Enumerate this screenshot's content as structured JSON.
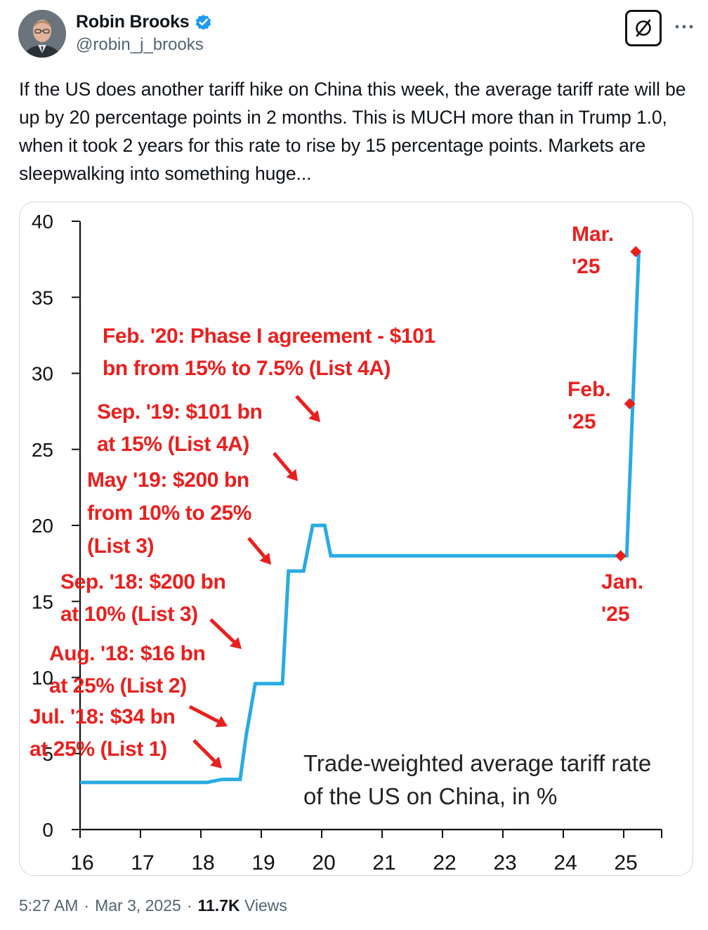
{
  "author": {
    "name": "Robin Brooks",
    "handle": "@robin_j_brooks",
    "verified": true,
    "verified_color": "#1d9bf0"
  },
  "header_actions": {
    "grok_icon": "grok-slash-icon",
    "more_icon": "more-horizontal-icon"
  },
  "tweet": {
    "text": "If the US does another tariff hike on China this week, the average tariff rate will be up by 20 percentage points in 2 months. This is MUCH more than in Trump 1.0, when it took 2 years for this rate to rise by 15 percentage points. Markets are sleepwalking into something huge..."
  },
  "footer": {
    "time": "5:27 AM",
    "date": "Mar 3, 2025",
    "separator": "·",
    "views_count": "11.7K",
    "views_label": "Views"
  },
  "chart_data": {
    "type": "line",
    "step": true,
    "title": "",
    "xlabel": "",
    "ylabel": "",
    "caption": "Trade-weighted average tariff rate of the US on China, in %",
    "xlim": [
      16,
      26
    ],
    "ylim": [
      0,
      40
    ],
    "x_ticks": [
      "16",
      "17",
      "18",
      "19",
      "20",
      "21",
      "22",
      "23",
      "24",
      "25"
    ],
    "y_ticks": [
      "0",
      "5",
      "10",
      "15",
      "20",
      "25",
      "30",
      "35",
      "40"
    ],
    "grid": false,
    "line_color": "#29abe2",
    "annotation_color": "#e8201e",
    "series": [
      {
        "x": [
          16.0,
          18.1,
          18.35,
          18.65,
          18.75,
          18.9,
          19.35,
          19.45,
          19.7,
          19.85,
          20.05,
          20.15,
          24.95,
          25.05,
          25.15,
          25.25
        ],
        "y": [
          3.1,
          3.1,
          3.3,
          3.3,
          6.2,
          9.6,
          9.6,
          17.0,
          17.0,
          20.0,
          20.0,
          18.0,
          18.0,
          18.0,
          28.0,
          38.0
        ]
      }
    ],
    "markers": [
      {
        "label": "Jan. '25",
        "x": 24.95,
        "y": 18.0
      },
      {
        "label": "Feb. '25",
        "x": 25.1,
        "y": 28.0
      },
      {
        "label": "Mar. '25",
        "x": 25.2,
        "y": 38.0
      }
    ],
    "annotations": [
      {
        "lines": [
          "Feb. '20: Phase I agreement - $101",
          "bn from 15% to 7.5% (List 4A)"
        ]
      },
      {
        "lines": [
          "Sep. '19: $101 bn",
          "at 15% (List 4A)"
        ]
      },
      {
        "lines": [
          "May '19: $200 bn",
          "from 10% to 25%",
          "(List 3)"
        ]
      },
      {
        "lines": [
          "Sep. '18: $200 bn",
          "at 10% (List 3)"
        ]
      },
      {
        "lines": [
          "Aug. '18: $16 bn",
          "at 25% (List 2)"
        ]
      },
      {
        "lines": [
          "Jul. '18: $34 bn",
          "at 25% (List 1)"
        ]
      }
    ],
    "marker_labels": [
      {
        "lines": [
          "Mar.",
          "'25"
        ]
      },
      {
        "lines": [
          "Feb.",
          "'25"
        ]
      },
      {
        "lines": [
          "Jan.",
          "'25"
        ]
      }
    ]
  }
}
